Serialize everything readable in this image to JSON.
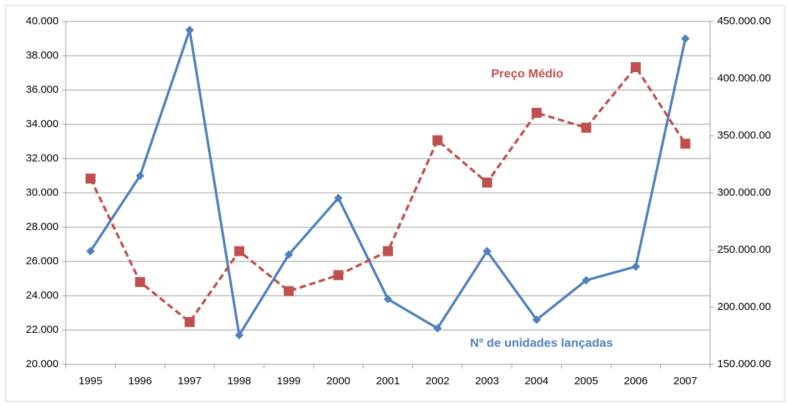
{
  "chart_data": {
    "type": "line",
    "categories": [
      "1995",
      "1996",
      "1997",
      "1998",
      "1999",
      "2000",
      "2001",
      "2002",
      "2003",
      "2004",
      "2005",
      "2006",
      "2007"
    ],
    "series": [
      {
        "name": "Nº de unidades lançadas",
        "color": "#4f81bd",
        "axis": "y",
        "values": [
          26600,
          31000,
          39500,
          21700,
          26400,
          29700,
          23800,
          22100,
          26600,
          22600,
          24900,
          25700,
          39000
        ]
      },
      {
        "name": "Preço Médio",
        "color": "#c0504d",
        "axis": "y2",
        "values": [
          312500,
          222000,
          187000,
          249000,
          214000,
          228000,
          249000,
          346000,
          309000,
          370000,
          357000,
          410000,
          343000
        ]
      }
    ],
    "ylim": [
      20000,
      40000
    ],
    "yticks": [
      {
        "value": 20000,
        "label": "20.000"
      },
      {
        "value": 22000,
        "label": "22.000"
      },
      {
        "value": 24000,
        "label": "24.000"
      },
      {
        "value": 26000,
        "label": "26.000"
      },
      {
        "value": 28000,
        "label": "28.000"
      },
      {
        "value": 30000,
        "label": "30.000"
      },
      {
        "value": 32000,
        "label": "32.000"
      },
      {
        "value": 34000,
        "label": "34.000"
      },
      {
        "value": 36000,
        "label": "36.000"
      },
      {
        "value": 38000,
        "label": "38.000"
      },
      {
        "value": 40000,
        "label": "40.000"
      }
    ],
    "y2lim": [
      150000,
      450000
    ],
    "y2ticks": [
      {
        "value": 150000,
        "label": "150.000.00"
      },
      {
        "value": 200000,
        "label": "200.000.00"
      },
      {
        "value": 250000,
        "label": "250.000.00"
      },
      {
        "value": 300000,
        "label": "300.000.00"
      },
      {
        "value": 350000,
        "label": "350.000.00"
      },
      {
        "value": 400000,
        "label": "400.000.00"
      },
      {
        "value": 450000,
        "label": "450.000.00"
      }
    ],
    "grid": true
  }
}
